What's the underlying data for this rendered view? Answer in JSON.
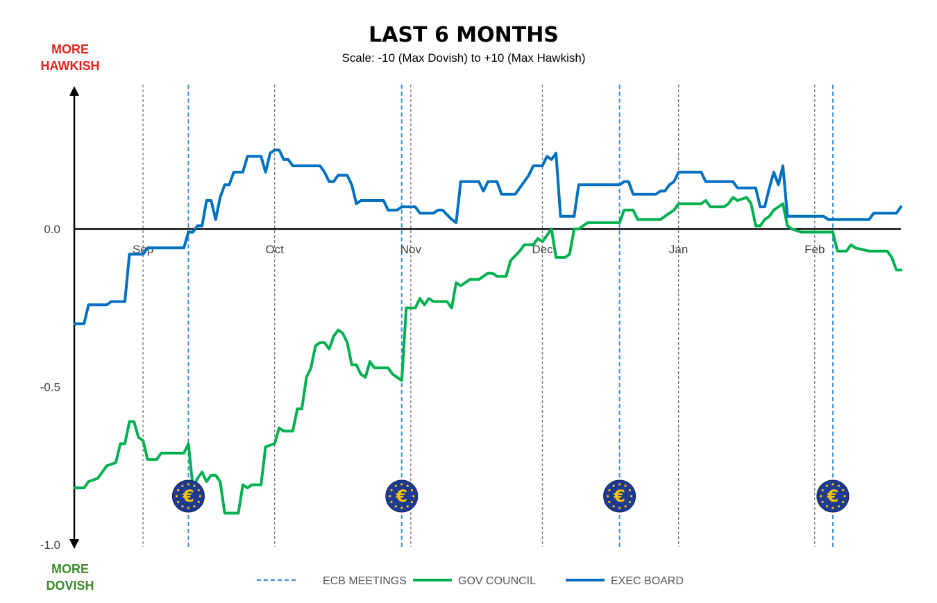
{
  "chart_data": {
    "type": "line",
    "title": "LAST 6 MONTHS",
    "subtitle": "Scale: -10 (Max Dovish)  to +10 (Max Hawkish)",
    "top_label": [
      "MORE",
      "HAWKISH"
    ],
    "bottom_label": [
      "MORE",
      "DOVISH"
    ],
    "xlabel": "",
    "ylabel": "",
    "ylim": [
      -1.0,
      0.4
    ],
    "xlim": [
      0,
      182
    ],
    "y_ticks": [
      {
        "value": 0.0,
        "label": "0.0"
      },
      {
        "value": -0.5,
        "label": "-0.5"
      },
      {
        "value": -1.0,
        "label": "-1.0"
      }
    ],
    "month_markers": [
      {
        "label": "Sep",
        "x": 15
      },
      {
        "label": "Oct",
        "x": 44
      },
      {
        "label": "Nov",
        "x": 74
      },
      {
        "label": "Dec",
        "x": 103
      },
      {
        "label": "Jan",
        "x": 133
      },
      {
        "label": "Feb",
        "x": 163
      }
    ],
    "ecb_meetings": [
      25,
      72,
      120,
      167
    ],
    "legend": {
      "placement": "bottom",
      "items": [
        {
          "key": "ecb",
          "label": "ECB MEETINGS"
        },
        {
          "key": "gov",
          "label": "GOV COUNCIL"
        },
        {
          "key": "exec",
          "label": "EXEC BOARD"
        }
      ]
    },
    "colors": {
      "gov": "#00b050",
      "exec": "#0070c0",
      "ecb": "#3a8fd9",
      "month_line": "#777777",
      "badge": "#1f3a93"
    },
    "euro_symbol": "€",
    "series": [
      {
        "name": "GOV COUNCIL",
        "key": "gov",
        "points": [
          [
            0,
            -0.82
          ],
          [
            2,
            -0.82
          ],
          [
            3,
            -0.8
          ],
          [
            5,
            -0.79
          ],
          [
            7,
            -0.75
          ],
          [
            9,
            -0.74
          ],
          [
            10,
            -0.68
          ],
          [
            11,
            -0.68
          ],
          [
            12,
            -0.61
          ],
          [
            13,
            -0.61
          ],
          [
            14,
            -0.66
          ],
          [
            15,
            -0.67
          ],
          [
            16,
            -0.73
          ],
          [
            18,
            -0.73
          ],
          [
            19,
            -0.71
          ],
          [
            24,
            -0.71
          ],
          [
            25,
            -0.68
          ],
          [
            26,
            -0.82
          ],
          [
            27,
            -0.79
          ],
          [
            28,
            -0.77
          ],
          [
            29,
            -0.8
          ],
          [
            30,
            -0.78
          ],
          [
            31,
            -0.78
          ],
          [
            32,
            -0.8
          ],
          [
            33,
            -0.9
          ],
          [
            36,
            -0.9
          ],
          [
            37,
            -0.81
          ],
          [
            38,
            -0.82
          ],
          [
            39,
            -0.81
          ],
          [
            41,
            -0.81
          ],
          [
            42,
            -0.69
          ],
          [
            44,
            -0.68
          ],
          [
            45,
            -0.63
          ],
          [
            46,
            -0.64
          ],
          [
            48,
            -0.64
          ],
          [
            49,
            -0.57
          ],
          [
            50,
            -0.57
          ],
          [
            51,
            -0.47
          ],
          [
            52,
            -0.44
          ],
          [
            53,
            -0.37
          ],
          [
            54,
            -0.36
          ],
          [
            55,
            -0.36
          ],
          [
            56,
            -0.38
          ],
          [
            57,
            -0.34
          ],
          [
            58,
            -0.32
          ],
          [
            59,
            -0.33
          ],
          [
            60,
            -0.36
          ],
          [
            61,
            -0.43
          ],
          [
            62,
            -0.43
          ],
          [
            63,
            -0.46
          ],
          [
            64,
            -0.47
          ],
          [
            65,
            -0.42
          ],
          [
            66,
            -0.44
          ],
          [
            68,
            -0.44
          ],
          [
            69,
            -0.44
          ],
          [
            70,
            -0.46
          ],
          [
            71,
            -0.47
          ],
          [
            72,
            -0.48
          ],
          [
            73,
            -0.25
          ],
          [
            75,
            -0.25
          ],
          [
            76,
            -0.22
          ],
          [
            77,
            -0.24
          ],
          [
            78,
            -0.22
          ],
          [
            79,
            -0.23
          ],
          [
            82,
            -0.23
          ],
          [
            83,
            -0.25
          ],
          [
            84,
            -0.17
          ],
          [
            85,
            -0.18
          ],
          [
            87,
            -0.16
          ],
          [
            89,
            -0.16
          ],
          [
            90,
            -0.15
          ],
          [
            91,
            -0.14
          ],
          [
            92,
            -0.14
          ],
          [
            93,
            -0.15
          ],
          [
            95,
            -0.15
          ],
          [
            96,
            -0.1
          ],
          [
            98,
            -0.07
          ],
          [
            99,
            -0.05
          ],
          [
            101,
            -0.05
          ],
          [
            102,
            -0.03
          ],
          [
            103,
            -0.04
          ],
          [
            104,
            -0.02
          ],
          [
            105,
            0.0
          ],
          [
            106,
            -0.09
          ],
          [
            108,
            -0.09
          ],
          [
            109,
            -0.08
          ],
          [
            110,
            0.0
          ],
          [
            111,
            0.0
          ],
          [
            112,
            0.01
          ],
          [
            113,
            0.02
          ],
          [
            116,
            0.02
          ],
          [
            120,
            0.02
          ],
          [
            121,
            0.06
          ],
          [
            122,
            0.06
          ],
          [
            123,
            0.06
          ],
          [
            124,
            0.03
          ],
          [
            129,
            0.03
          ],
          [
            131,
            0.05
          ],
          [
            132,
            0.06
          ],
          [
            133,
            0.08
          ],
          [
            138,
            0.08
          ],
          [
            139,
            0.09
          ],
          [
            140,
            0.07
          ],
          [
            143,
            0.07
          ],
          [
            144,
            0.08
          ],
          [
            145,
            0.1
          ],
          [
            146,
            0.09
          ],
          [
            148,
            0.1
          ],
          [
            149,
            0.08
          ],
          [
            150,
            0.01
          ],
          [
            151,
            0.01
          ],
          [
            152,
            0.03
          ],
          [
            153,
            0.04
          ],
          [
            154,
            0.06
          ],
          [
            155,
            0.07
          ],
          [
            156,
            0.08
          ],
          [
            157,
            0.01
          ],
          [
            158,
            0.0
          ],
          [
            160,
            -0.01
          ],
          [
            167,
            -0.01
          ],
          [
            168,
            -0.07
          ],
          [
            170,
            -0.07
          ],
          [
            171,
            -0.05
          ],
          [
            172,
            -0.06
          ],
          [
            175,
            -0.07
          ],
          [
            179,
            -0.07
          ],
          [
            180,
            -0.09
          ],
          [
            181,
            -0.13
          ],
          [
            182,
            -0.13
          ]
        ]
      },
      {
        "name": "EXEC BOARD",
        "key": "exec",
        "points": [
          [
            0,
            -0.3
          ],
          [
            2,
            -0.3
          ],
          [
            3,
            -0.24
          ],
          [
            7,
            -0.24
          ],
          [
            8,
            -0.23
          ],
          [
            11,
            -0.23
          ],
          [
            12,
            -0.08
          ],
          [
            15,
            -0.08
          ],
          [
            16,
            -0.06
          ],
          [
            24,
            -0.06
          ],
          [
            25,
            -0.01
          ],
          [
            26,
            -0.01
          ],
          [
            27,
            0.01
          ],
          [
            28,
            0.01
          ],
          [
            29,
            0.09
          ],
          [
            30,
            0.09
          ],
          [
            31,
            0.03
          ],
          [
            32,
            0.1
          ],
          [
            33,
            0.14
          ],
          [
            34,
            0.14
          ],
          [
            35,
            0.18
          ],
          [
            36,
            0.18
          ],
          [
            37,
            0.18
          ],
          [
            38,
            0.23
          ],
          [
            41,
            0.23
          ],
          [
            42,
            0.18
          ],
          [
            43,
            0.24
          ],
          [
            44,
            0.25
          ],
          [
            45,
            0.25
          ],
          [
            46,
            0.22
          ],
          [
            47,
            0.22
          ],
          [
            48,
            0.2
          ],
          [
            54,
            0.2
          ],
          [
            55,
            0.18
          ],
          [
            56,
            0.15
          ],
          [
            57,
            0.15
          ],
          [
            58,
            0.17
          ],
          [
            60,
            0.17
          ],
          [
            61,
            0.14
          ],
          [
            62,
            0.08
          ],
          [
            63,
            0.09
          ],
          [
            68,
            0.09
          ],
          [
            69,
            0.06
          ],
          [
            71,
            0.06
          ],
          [
            72,
            0.07
          ],
          [
            75,
            0.07
          ],
          [
            76,
            0.05
          ],
          [
            79,
            0.05
          ],
          [
            80,
            0.06
          ],
          [
            81,
            0.06
          ],
          [
            83,
            0.03
          ],
          [
            84,
            0.02
          ],
          [
            85,
            0.15
          ],
          [
            86,
            0.15
          ],
          [
            89,
            0.15
          ],
          [
            90,
            0.12
          ],
          [
            91,
            0.15
          ],
          [
            93,
            0.15
          ],
          [
            94,
            0.11
          ],
          [
            97,
            0.11
          ],
          [
            98,
            0.13
          ],
          [
            99,
            0.15
          ],
          [
            100,
            0.17
          ],
          [
            101,
            0.2
          ],
          [
            103,
            0.2
          ],
          [
            104,
            0.23
          ],
          [
            105,
            0.22
          ],
          [
            106,
            0.24
          ],
          [
            107,
            0.04
          ],
          [
            110,
            0.04
          ],
          [
            111,
            0.14
          ],
          [
            113,
            0.14
          ],
          [
            120,
            0.14
          ],
          [
            121,
            0.15
          ],
          [
            122,
            0.15
          ],
          [
            123,
            0.11
          ],
          [
            128,
            0.11
          ],
          [
            129,
            0.12
          ],
          [
            130,
            0.12
          ],
          [
            131,
            0.14
          ],
          [
            132,
            0.15
          ],
          [
            133,
            0.18
          ],
          [
            138,
            0.18
          ],
          [
            139,
            0.15
          ],
          [
            145,
            0.15
          ],
          [
            146,
            0.13
          ],
          [
            150,
            0.13
          ],
          [
            151,
            0.07
          ],
          [
            152,
            0.07
          ],
          [
            153,
            0.13
          ],
          [
            154,
            0.18
          ],
          [
            155,
            0.14
          ],
          [
            156,
            0.2
          ],
          [
            157,
            0.04
          ],
          [
            164,
            0.04
          ],
          [
            165,
            0.04
          ],
          [
            166,
            0.03
          ],
          [
            168,
            0.03
          ],
          [
            175,
            0.03
          ],
          [
            176,
            0.05
          ],
          [
            181,
            0.05
          ],
          [
            182,
            0.07
          ]
        ]
      }
    ]
  }
}
